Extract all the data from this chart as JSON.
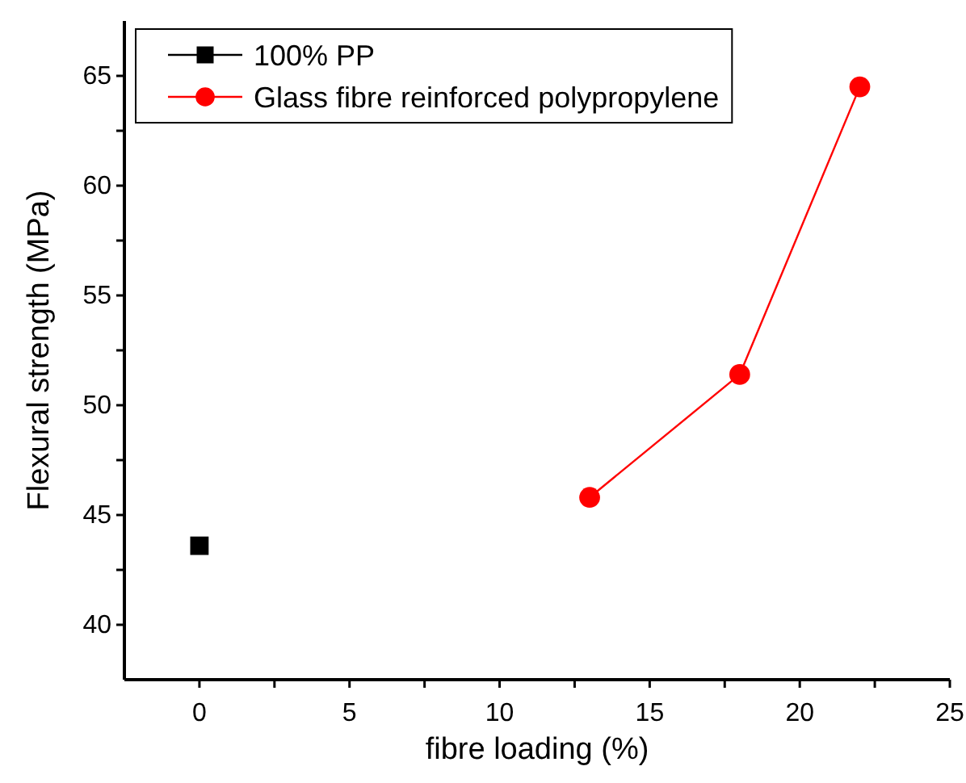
{
  "chart_data": {
    "type": "line",
    "xlabel": "fibre loading (%)",
    "ylabel": "Flexural strength (MPa)",
    "xlim": [
      -2.5,
      25
    ],
    "ylim": [
      37.5,
      67.5
    ],
    "xticks": [
      0,
      {
        "value": 2.5,
        "label": null
      },
      5,
      {
        "value": 7.5,
        "label": null
      },
      10,
      {
        "value": 12.5,
        "label": null
      },
      15,
      {
        "value": 17.5,
        "label": null
      },
      20,
      {
        "value": 22.5,
        "label": null
      },
      25
    ],
    "yticks": [
      40,
      {
        "value": 42.5,
        "label": null
      },
      45,
      {
        "value": 47.5,
        "label": null
      },
      50,
      {
        "value": 52.5,
        "label": null
      },
      55,
      {
        "value": 57.5,
        "label": null
      },
      60,
      {
        "value": 62.5,
        "label": null
      },
      65
    ],
    "legend": "top left",
    "grid": false,
    "series": [
      {
        "name": "100% PP",
        "color": "#000000",
        "marker": "square",
        "x": [
          0
        ],
        "values": [
          43.6
        ]
      },
      {
        "name": "Glass fibre reinforced polypropylene",
        "color": "#ff0000",
        "marker": "circle",
        "x": [
          13,
          18,
          22
        ],
        "values": [
          45.8,
          51.4,
          64.5
        ]
      }
    ]
  }
}
